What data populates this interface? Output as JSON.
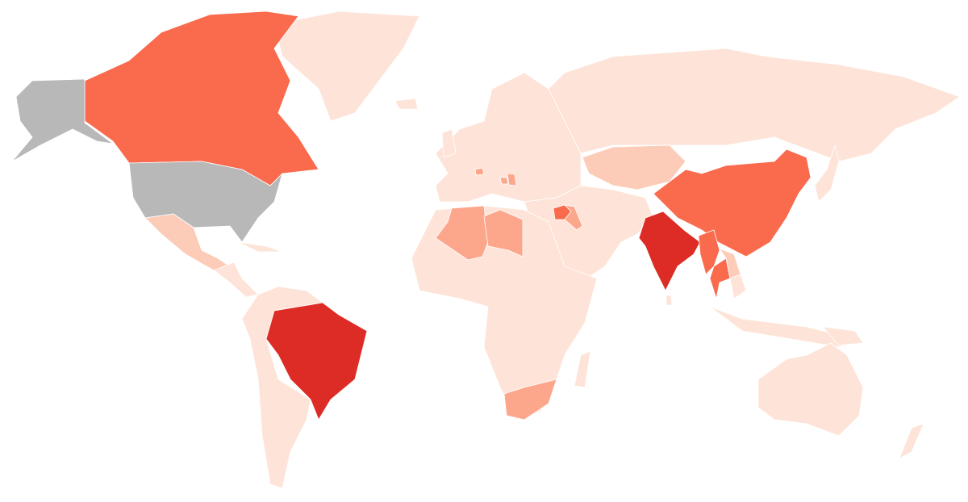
{
  "map": {
    "type": "choropleth",
    "colors": {
      "no-data": "#b8b8b8",
      "low": "#fee4d8",
      "low-mid": "#fcccb8",
      "mid": "#fca68c",
      "high": "#fa6a4d",
      "highest": "#dd2b25"
    },
    "default_level": "low",
    "countries": {
      "alaska": "no-data",
      "usa": "no-data",
      "canada": "high",
      "brazil": "highest",
      "india": "highest",
      "china": "high",
      "myanmar": "high",
      "thailand": "high",
      "laos": "low-mid",
      "syria": "high",
      "iraq": "mid",
      "algeria": "mid",
      "libya": "mid",
      "south-africa": "mid",
      "kazakhstan": "low-mid",
      "switzerland": "mid",
      "serbia": "mid",
      "bosnia": "mid",
      "mexico": "low-mid"
    }
  }
}
